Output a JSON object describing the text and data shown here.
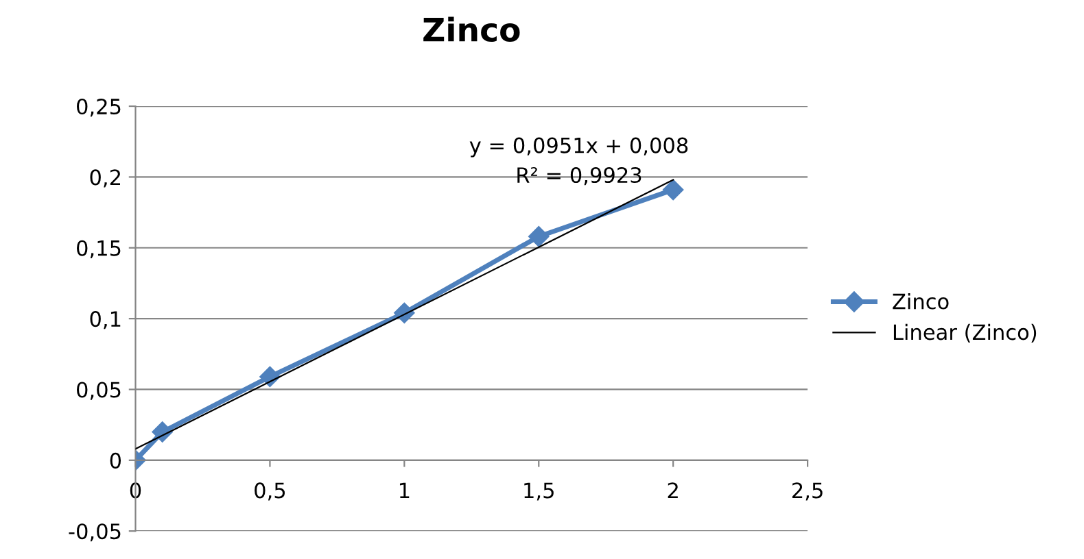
{
  "chart_data": {
    "type": "line",
    "title": "Zinco",
    "series": [
      {
        "name": "Zinco",
        "color": "#4f81bd",
        "x": [
          0,
          0.1,
          0.5,
          1,
          1.5,
          2
        ],
        "values": [
          0,
          0.02,
          0.059,
          0.104,
          0.158,
          0.191
        ],
        "marker": "diamond",
        "line_style": "solid"
      },
      {
        "name": "Linear (Zinco)",
        "color": "#000000",
        "x": [
          0,
          2
        ],
        "values": [
          0.008,
          0.198
        ],
        "marker": "none",
        "line_style": "solid"
      }
    ],
    "xlim": [
      0,
      2.5
    ],
    "xticks": [
      0,
      {
        "value": 0.5,
        "label": "0,5"
      },
      1,
      {
        "value": 1.5,
        "label": "1,5"
      },
      2,
      {
        "value": 2.5,
        "label": "2,5"
      }
    ],
    "ylim": [
      -0.05,
      0.25
    ],
    "yticks": [
      {
        "value": -0.05,
        "label": "-0,05"
      },
      0,
      {
        "value": 0.05,
        "label": "0,05"
      },
      {
        "value": 0.1,
        "label": "0,1"
      },
      {
        "value": 0.15,
        "label": "0,15"
      },
      {
        "value": 0.2,
        "label": "0,2"
      },
      {
        "value": 0.25,
        "label": "0,25"
      }
    ],
    "grid": "y",
    "legend": "right",
    "annotations": [
      "y = 0,0951x + 0,008",
      "R² = 0,9923"
    ]
  }
}
